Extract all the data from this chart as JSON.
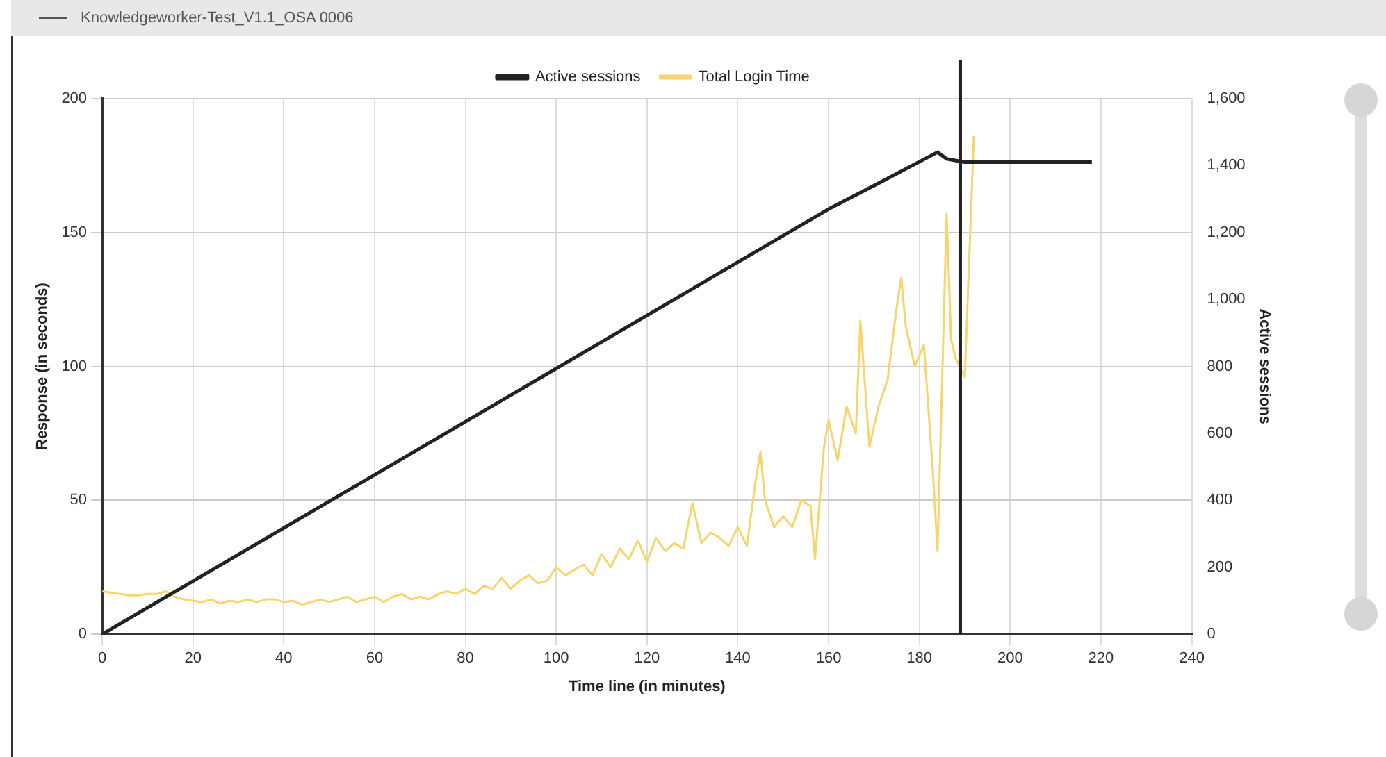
{
  "chart_data": {
    "type": "line",
    "title": "Knowledgeworker-Test_V1.1_OSA 0006",
    "xlabel": "Time line (in minutes)",
    "ylabel": "Response (in seconds)",
    "y2label": "Active sessions",
    "xlim": [
      0,
      240
    ],
    "xticks": [
      0,
      20,
      40,
      60,
      80,
      100,
      120,
      140,
      160,
      180,
      200,
      220,
      240
    ],
    "ylim": [
      0,
      200
    ],
    "yticks": [
      0,
      50,
      100,
      150,
      200
    ],
    "y2lim": [
      0,
      1600
    ],
    "y2ticks": [
      0,
      {
        "value": 200,
        "label": "200"
      },
      {
        "value": 400,
        "label": "400"
      },
      {
        "value": 600,
        "label": "600"
      },
      {
        "value": 800,
        "label": "800"
      },
      {
        "value": 1000,
        "label": "1,000"
      },
      {
        "value": 1200,
        "label": "1,200"
      },
      {
        "value": 1400,
        "label": "1,400"
      },
      {
        "value": 1600,
        "label": "1,600"
      }
    ],
    "grid": true,
    "legend": "top",
    "line_style": "solid",
    "ref_lines": [
      {
        "axis": "x",
        "value": 189,
        "color": "#222222"
      }
    ],
    "series": [
      {
        "name": "Active sessions",
        "color": "#222222",
        "axis": "y2",
        "x": [
          0,
          160,
          170,
          184,
          186,
          190,
          218
        ],
        "values": [
          0,
          1270,
          1340,
          1440,
          1420,
          1410,
          1410
        ]
      },
      {
        "name": "Total Login Time",
        "color": "#f7d56a",
        "axis": "y",
        "x": [
          0,
          2,
          4,
          6,
          8,
          10,
          12,
          14,
          16,
          18,
          20,
          22,
          24,
          26,
          28,
          30,
          32,
          34,
          36,
          38,
          40,
          42,
          44,
          46,
          48,
          50,
          52,
          54,
          56,
          58,
          60,
          62,
          64,
          66,
          68,
          70,
          72,
          74,
          76,
          78,
          80,
          82,
          84,
          86,
          88,
          90,
          92,
          94,
          96,
          98,
          100,
          102,
          104,
          106,
          108,
          110,
          112,
          114,
          116,
          118,
          120,
          122,
          124,
          126,
          128,
          130,
          132,
          134,
          136,
          138,
          140,
          142,
          144,
          145,
          146,
          148,
          150,
          152,
          154,
          156,
          157,
          159,
          160,
          162,
          164,
          166,
          167,
          169,
          171,
          173,
          175,
          176,
          177,
          179,
          181,
          183,
          184,
          186,
          187,
          188,
          190,
          192
        ],
        "values": [
          16,
          15.5,
          15,
          14.5,
          14.5,
          15,
          15,
          16,
          14,
          13,
          12.5,
          12,
          13,
          11.5,
          12.5,
          12,
          13,
          12,
          13,
          13,
          12,
          12.5,
          11,
          12,
          13,
          12,
          13,
          14,
          12,
          13,
          14,
          12,
          14,
          15,
          13,
          14,
          13,
          15,
          16,
          15,
          17,
          15,
          18,
          17,
          21,
          17,
          20,
          22,
          19,
          20,
          25,
          22,
          24,
          26,
          22,
          30,
          25,
          32,
          28,
          35,
          27,
          36,
          31,
          34,
          32,
          49,
          34,
          38,
          36,
          33,
          40,
          33,
          58,
          68,
          50,
          40,
          44,
          40,
          50,
          48,
          28,
          70,
          80,
          65,
          85,
          75,
          117,
          70,
          85,
          95,
          122,
          133,
          115,
          100,
          108,
          60,
          31,
          157,
          110,
          103,
          96,
          186
        ]
      }
    ]
  }
}
